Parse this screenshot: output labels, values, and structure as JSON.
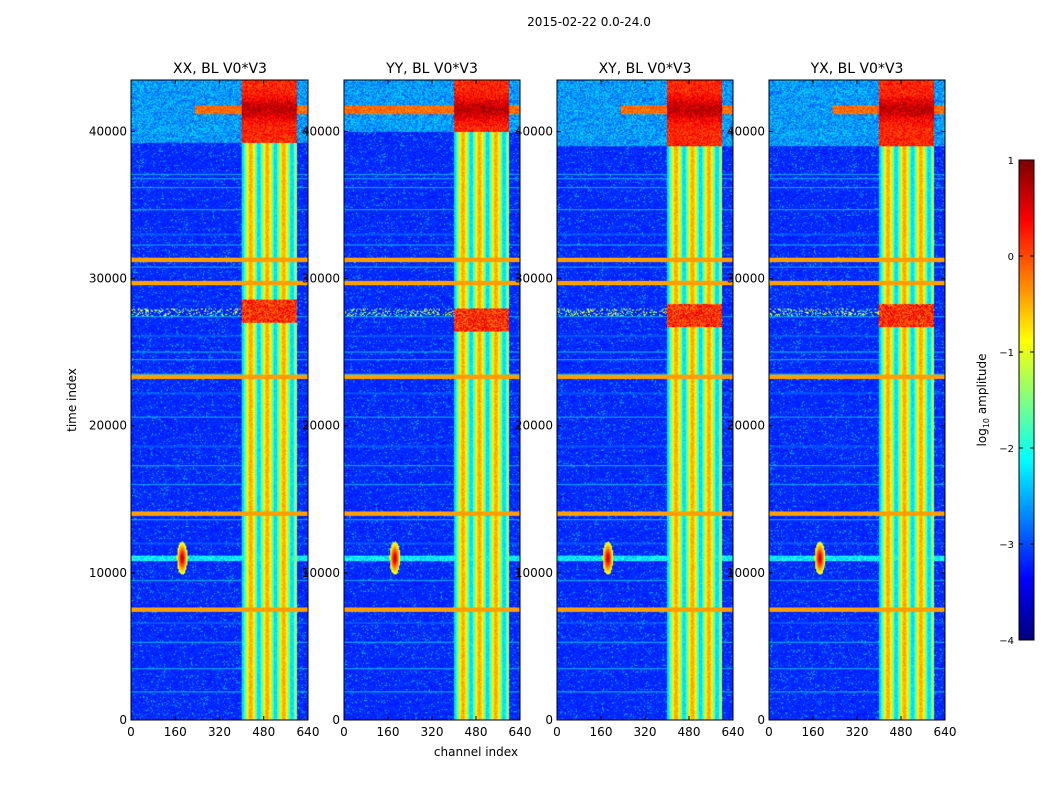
{
  "chart_data": {
    "type": "heatmap",
    "suptitle": "2015-02-22 0.0-24.0",
    "xlabel": "channel index",
    "ylabel": "time index",
    "x_range": [
      0,
      640
    ],
    "y_range": [
      0,
      43500
    ],
    "x_ticks": [
      "0",
      "160",
      "320",
      "480",
      "640"
    ],
    "y_ticks": [
      "0",
      "10000",
      "20000",
      "30000",
      "40000"
    ],
    "panels": [
      {
        "title": "XX, BL V0*V3",
        "band_start": 400,
        "band_end": 600,
        "upper_start": 39200,
        "upper_peak": 41500,
        "cal_y": 11000,
        "cal_x": 185,
        "mid_peak": 27800,
        "smear_full": false
      },
      {
        "title": "YY, BL V0*V3",
        "band_start": 400,
        "band_end": 600,
        "upper_start": 40000,
        "upper_peak": 41500,
        "cal_y": 11000,
        "cal_x": 185,
        "mid_peak": 27200,
        "smear_full": true
      },
      {
        "title": "XY, BL V0*V3",
        "band_start": 400,
        "band_end": 600,
        "upper_start": 39000,
        "upper_peak": 41500,
        "cal_y": 11000,
        "cal_x": 185,
        "mid_peak": 27500,
        "smear_full": false
      },
      {
        "title": "YX, BL V0*V3",
        "band_start": 400,
        "band_end": 600,
        "upper_start": 39000,
        "upper_peak": 41500,
        "cal_y": 11000,
        "cal_x": 185,
        "mid_peak": 27500,
        "smear_full": false
      }
    ],
    "rfi_rows": [
      1900,
      3500,
      5300,
      6600,
      7500,
      9500,
      12000,
      13600,
      14000,
      16000,
      17300,
      18600,
      20600,
      22200,
      23200,
      23500,
      24500,
      25000,
      26100,
      27400,
      29600,
      30800,
      31200,
      32300,
      33000,
      34700,
      36200,
      36800,
      37100,
      42600
    ],
    "strong_rows": [
      7500,
      14000,
      23300,
      29700,
      31300
    ],
    "colorbar": {
      "label": "log",
      "label_sub": "10",
      "label_rest": " amplitude",
      "range": [
        -4,
        1
      ],
      "ticks": [
        "1",
        "0",
        "−1",
        "−2",
        "−3",
        "−4"
      ],
      "colormap": "jet"
    }
  }
}
